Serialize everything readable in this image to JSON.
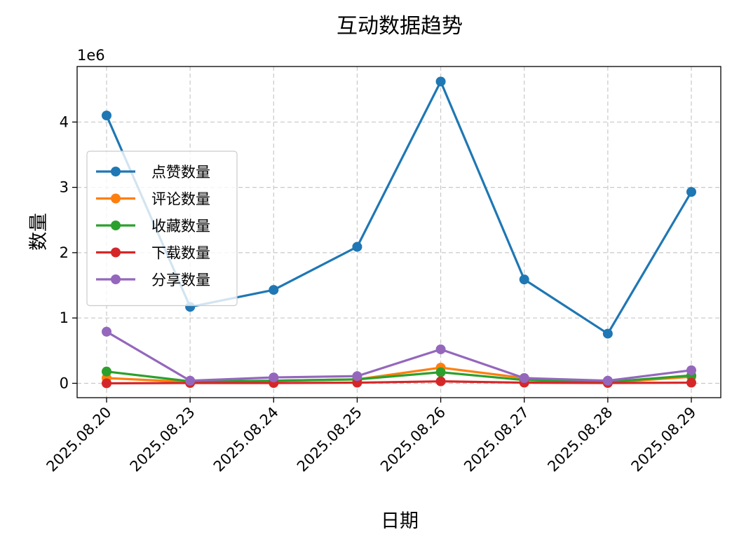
{
  "chart_data": {
    "type": "line",
    "title": "互动数据趋势",
    "xlabel": "日期",
    "ylabel": "数量",
    "y_offset_label": "1e6",
    "categories": [
      "2025.08.20",
      "2025.08.23",
      "2025.08.24",
      "2025.08.25",
      "2025.08.26",
      "2025.08.27",
      "2025.08.28",
      "2025.08.29"
    ],
    "ylim": [
      -220000,
      4850000
    ],
    "yticks": [
      0,
      1000000,
      2000000,
      3000000,
      4000000
    ],
    "ytick_labels": [
      "0",
      "1",
      "2",
      "3",
      "4"
    ],
    "grid": true,
    "legend_position": "center-left",
    "series": [
      {
        "name": "点赞数量",
        "color": "#1f77b4",
        "values": [
          4100000,
          1170000,
          1430000,
          2090000,
          4620000,
          1590000,
          760000,
          2930000
        ]
      },
      {
        "name": "评论数量",
        "color": "#ff7f0e",
        "values": [
          80000,
          20000,
          40000,
          60000,
          240000,
          80000,
          10000,
          100000
        ]
      },
      {
        "name": "收藏数量",
        "color": "#2ca02c",
        "values": [
          180000,
          30000,
          40000,
          60000,
          170000,
          50000,
          20000,
          120000
        ]
      },
      {
        "name": "下载数量",
        "color": "#d62728",
        "values": [
          0,
          5000,
          5000,
          10000,
          30000,
          10000,
          5000,
          10000
        ]
      },
      {
        "name": "分享数量",
        "color": "#9467bd",
        "values": [
          790000,
          40000,
          90000,
          110000,
          520000,
          80000,
          40000,
          200000
        ]
      }
    ]
  }
}
